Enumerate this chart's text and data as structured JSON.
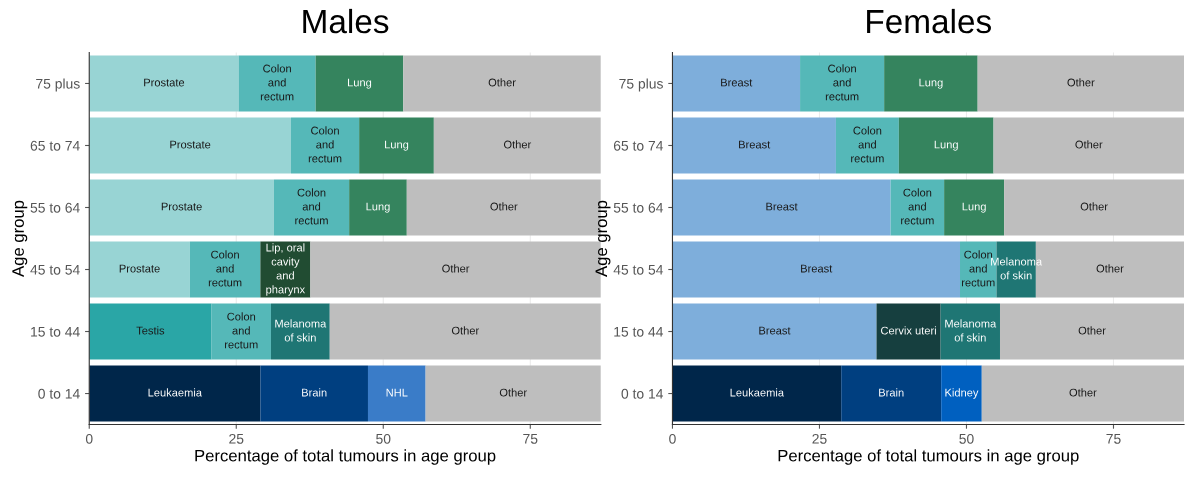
{
  "chart_data": [
    {
      "type": "bar",
      "title": "Males",
      "xlabel": "Percentage of total tumours in age group",
      "ylabel": "Age group",
      "orientation": "horizontal",
      "stacked": true,
      "xlim": [
        0,
        87
      ],
      "xticks": [
        0,
        25,
        50,
        75
      ],
      "grid": "x",
      "categories": [
        "75 plus",
        "65 to 74",
        "55 to 64",
        "45 to 54",
        "15 to 44",
        "0 to 14"
      ],
      "series": [
        {
          "values": [
            25.4,
            34.3,
            31.4,
            17.1,
            20.8,
            29.1
          ],
          "colors": [
            "#98d4d4",
            "#98d4d4",
            "#98d4d4",
            "#98d4d4",
            "#2aa6a6",
            "#00264a"
          ],
          "value_labels": [
            "Prostate",
            "Prostate",
            "Prostate",
            "Prostate",
            "Testis",
            "Leukaemia"
          ]
        },
        {
          "values": [
            13.1,
            11.6,
            12.8,
            12.0,
            10.1,
            18.3
          ],
          "colors": [
            "#55b8b8",
            "#55b8b8",
            "#55b8b8",
            "#55b8b8",
            "#55b8b8",
            "#003f80"
          ],
          "value_labels": [
            "Colon\nand\nrectum",
            "Colon\nand\nrectum",
            "Colon\nand\nrectum",
            "Colon\nand\nrectum",
            "Colon\nand\nrectum",
            "Brain"
          ]
        },
        {
          "values": [
            14.9,
            12.7,
            9.8,
            8.5,
            10.0,
            9.8
          ],
          "colors": [
            "#35845e",
            "#35845e",
            "#35845e",
            "#214c32",
            "#1f7674",
            "#3a7cc8"
          ],
          "value_labels": [
            "Lung",
            "Lung",
            "Lung",
            "Lip, oral\ncavity\nand\npharynx",
            "Melanoma\nof skin",
            "NHL"
          ]
        },
        {
          "values": [
            33.6,
            28.4,
            33.0,
            49.4,
            46.1,
            29.8
          ],
          "colors": [
            "#bebebe",
            "#bebebe",
            "#bebebe",
            "#bebebe",
            "#bebebe",
            "#bebebe"
          ],
          "value_labels": [
            "Other",
            "Other",
            "Other",
            "Other",
            "Other",
            "Other"
          ]
        }
      ]
    },
    {
      "type": "bar",
      "title": "Females",
      "xlabel": "Percentage of total tumours in age group",
      "ylabel": "Age group",
      "orientation": "horizontal",
      "stacked": true,
      "xlim": [
        0,
        87
      ],
      "xticks": [
        0,
        25,
        50,
        75
      ],
      "grid": "x",
      "categories": [
        "75 plus",
        "65 to 74",
        "55 to 64",
        "45 to 54",
        "15 to 44",
        "0 to 14"
      ],
      "series": [
        {
          "values": [
            21.7,
            27.8,
            37.1,
            48.9,
            34.7,
            28.7
          ],
          "colors": [
            "#7eaedb",
            "#7eaedb",
            "#7eaedb",
            "#7eaedb",
            "#7eaedb",
            "#00264a"
          ],
          "value_labels": [
            "Breast",
            "Breast",
            "Breast",
            "Breast",
            "Breast",
            "Leukaemia"
          ]
        },
        {
          "values": [
            14.3,
            10.7,
            9.1,
            6.2,
            10.9,
            17.0
          ],
          "colors": [
            "#55b8b8",
            "#55b8b8",
            "#55b8b8",
            "#55b8b8",
            "#163f3f",
            "#003f80"
          ],
          "value_labels": [
            "Colon\nand\nrectum",
            "Colon\nand\nrectum",
            "Colon\nand\nrectum",
            "Colon\nand\nrectum",
            "Cervix uteri",
            "Brain"
          ]
        },
        {
          "values": [
            15.9,
            16.1,
            10.2,
            6.7,
            10.1,
            6.9
          ],
          "colors": [
            "#35845e",
            "#35845e",
            "#35845e",
            "#1f7674",
            "#1f7674",
            "#0060c0"
          ],
          "value_labels": [
            "Lung",
            "Lung",
            "Lung",
            "Melanoma\nof skin",
            "Melanoma\nof skin",
            "Kidney"
          ]
        },
        {
          "values": [
            35.1,
            32.4,
            30.6,
            25.2,
            31.3,
            34.4
          ],
          "colors": [
            "#bebebe",
            "#bebebe",
            "#bebebe",
            "#bebebe",
            "#bebebe",
            "#bebebe"
          ],
          "value_labels": [
            "Other",
            "Other",
            "Other",
            "Other",
            "Other",
            "Other"
          ]
        }
      ]
    }
  ]
}
